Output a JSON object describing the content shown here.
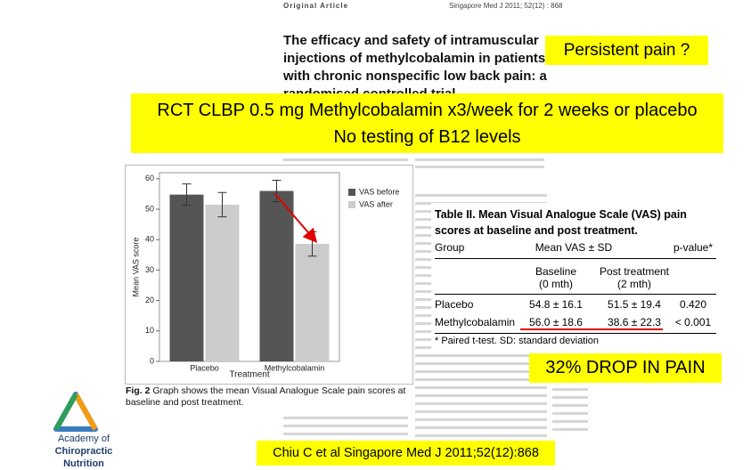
{
  "header": {
    "section": "Original Article",
    "journal": "Singapore Med J 2011; 52(12) : 868"
  },
  "article_title": "The efficacy and safety of intramuscular injections of methylcobalamin in patients with chronic nonspecific low back pain: a randomised controlled trial",
  "callouts": {
    "question": "Persistent pain ?",
    "design_line1": "RCT CLBP 0.5 mg Methylcobalamin x3/week for 2 weeks or placebo",
    "design_line2": "No testing of B12 levels",
    "result": "32% DROP IN PAIN",
    "citation": "Chiu C et al Singapore Med J 2011;52(12):868"
  },
  "chart_data": {
    "type": "bar",
    "categories": [
      "Placebo",
      "Methylcobalamin"
    ],
    "series": [
      {
        "name": "VAS before",
        "color": "#555555",
        "values": [
          54.8,
          56.0
        ],
        "errors": [
          3.5,
          3.5
        ]
      },
      {
        "name": "VAS after",
        "color": "#cccccc",
        "values": [
          51.5,
          38.6
        ],
        "errors": [
          4,
          4
        ]
      }
    ],
    "ylim": [
      0,
      62
    ],
    "yticks": [
      0,
      10,
      20,
      30,
      40,
      50,
      60
    ],
    "ylabel": "Mean VAS score",
    "xlabel": "Treatment",
    "legend": "right"
  },
  "figure_caption": {
    "label": "Fig. 2",
    "text": "Graph shows the mean Visual Analogue Scale pain scores at baseline and post treatment."
  },
  "table": {
    "title": "Table II. Mean Visual Analogue Scale (VAS) pain scores at baseline and post treatment.",
    "header": [
      "Group",
      "Mean VAS ± SD",
      "p-value*"
    ],
    "subheader": [
      [
        "Baseline",
        "(0 mth)"
      ],
      [
        "Post treatment",
        "(2 mth)"
      ]
    ],
    "rows": [
      [
        "Placebo",
        "54.8 ± 16.1",
        "51.5 ± 19.4",
        "0.420"
      ],
      [
        "Methylcobalamin",
        "56.0 ± 18.6",
        "38.6 ± 22.3",
        "< 0.001"
      ]
    ],
    "footnote": "* Paired t-test. SD: standard deviation"
  },
  "logo": {
    "line1": "Academy of",
    "line2": "Chiropractic Nutrition"
  }
}
